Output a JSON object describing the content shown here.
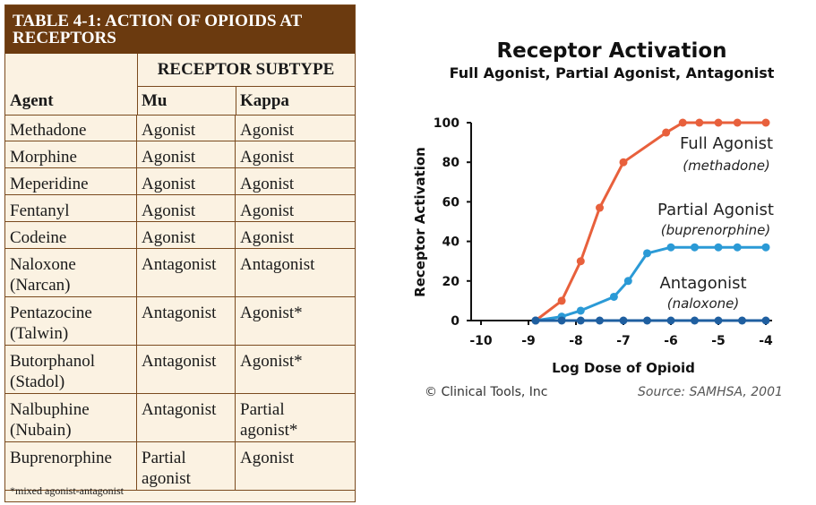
{
  "table": {
    "title_line1": "TABLE 4-1: ACTION OF OPIOIDS AT",
    "title_line2": "RECEPTORS",
    "receptor_subtype_header": "RECEPTOR SUBTYPE",
    "col_agent": "Agent",
    "col_mu": "Mu",
    "col_kappa": "Kappa",
    "rows": [
      {
        "agent": "Methadone",
        "agent2": "",
        "mu": "Agonist",
        "mu2": "",
        "kappa": "Agonist",
        "kappa2": ""
      },
      {
        "agent": "Morphine",
        "agent2": "",
        "mu": "Agonist",
        "mu2": "",
        "kappa": "Agonist",
        "kappa2": ""
      },
      {
        "agent": "Meperidine",
        "agent2": "",
        "mu": "Agonist",
        "mu2": "",
        "kappa": "Agonist",
        "kappa2": ""
      },
      {
        "agent": "Fentanyl",
        "agent2": "",
        "mu": "Agonist",
        "mu2": "",
        "kappa": "Agonist",
        "kappa2": ""
      },
      {
        "agent": "Codeine",
        "agent2": "",
        "mu": "Agonist",
        "mu2": "",
        "kappa": "Agonist",
        "kappa2": ""
      },
      {
        "agent": "Naloxone",
        "agent2": "(Narcan)",
        "mu": "Antagonist",
        "mu2": "",
        "kappa": "Antagonist",
        "kappa2": ""
      },
      {
        "agent": "Pentazocine",
        "agent2": "(Talwin)",
        "mu": "Antagonist",
        "mu2": "",
        "kappa": "Agonist*",
        "kappa2": ""
      },
      {
        "agent": "Butorphanol",
        "agent2": "(Stadol)",
        "mu": "Antagonist",
        "mu2": "",
        "kappa": "Agonist*",
        "kappa2": ""
      },
      {
        "agent": "Nalbuphine",
        "agent2": "(Nubain)",
        "mu": "Antagonist",
        "mu2": "",
        "kappa": "Partial",
        "kappa2": "agonist*"
      },
      {
        "agent": "Buprenorphine",
        "agent2": "",
        "mu": "Partial",
        "mu2": "agonist",
        "kappa": "Agonist",
        "kappa2": ""
      }
    ],
    "footnote": "*mixed agonist-antagonist"
  },
  "chart_data": {
    "type": "line",
    "title": "Receptor Activation",
    "subtitle": "Full Agonist, Partial Agonist, Antagonist",
    "xlabel": "Log Dose of Opioid",
    "ylabel": "Receptor Activation",
    "xlim": [
      -10,
      -4
    ],
    "ylim": [
      0,
      100
    ],
    "xticks": [
      "-10",
      "-9",
      "-8",
      "-7",
      "-6",
      "-5",
      "-4"
    ],
    "yticks": [
      "0",
      "20",
      "40",
      "60",
      "80",
      "100"
    ],
    "series": [
      {
        "name": "Full Agonist",
        "label_sub": "(methadone)",
        "color": "#e8603c",
        "x": [
          -8.85,
          -8.3,
          -7.9,
          -7.5,
          -7.0,
          -6.1,
          -5.75,
          -5.4,
          -5.0,
          -4.6,
          -4.0
        ],
        "y": [
          0,
          10,
          30,
          57,
          80,
          95,
          100,
          100,
          100,
          100,
          100
        ]
      },
      {
        "name": "Partial Agonist",
        "label_sub": "(buprenorphine)",
        "color": "#2b9ad6",
        "x": [
          -8.85,
          -8.3,
          -7.9,
          -7.2,
          -6.9,
          -6.5,
          -6.0,
          -5.5,
          -5.0,
          -4.6,
          -4.0
        ],
        "y": [
          0,
          2,
          5,
          12,
          20,
          34,
          37,
          37,
          37,
          37,
          37
        ]
      },
      {
        "name": "Antagonist",
        "label_sub": "(naloxone)",
        "color": "#1f5fa0",
        "x": [
          -8.85,
          -8.3,
          -7.9,
          -7.5,
          -7.0,
          -6.5,
          -6.0,
          -5.5,
          -5.0,
          -4.5,
          -4.0
        ],
        "y": [
          0,
          0,
          0,
          0,
          0,
          0,
          0,
          0,
          0,
          0,
          0
        ]
      }
    ],
    "legend_placement": "inline-right",
    "grid": false
  },
  "credit": "© Clinical Tools, Inc",
  "source": "Source: SAMHSA, 2001"
}
